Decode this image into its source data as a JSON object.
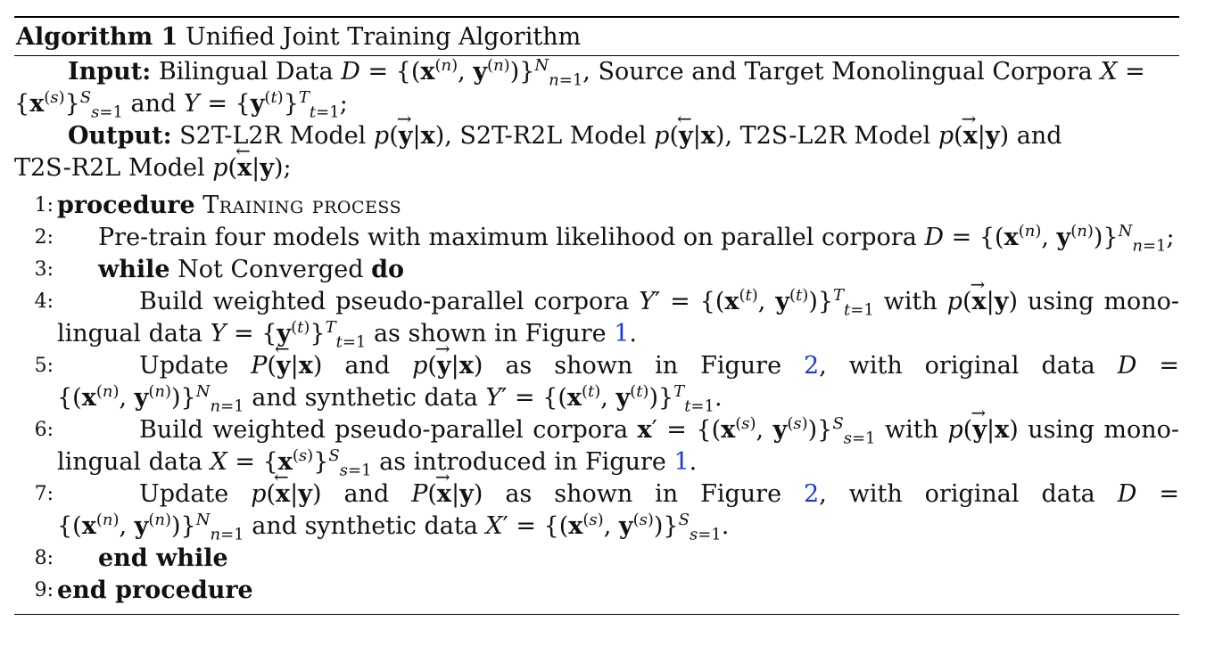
{
  "caption": {
    "label": "Algorithm 1",
    "title": "Unified Joint Training Algorithm"
  },
  "input": {
    "label": "Input:",
    "text_a": "Bilingual Data",
    "text_b": "Source and Target Monolingual Corpora",
    "text_c": "and"
  },
  "output": {
    "label": "Output:",
    "m1": "S2T-L2R Model",
    "m2": "S2T-R2L Model",
    "m3": "T2S-L2R Model",
    "and": "and",
    "m4": "T2S-R2L Model"
  },
  "lines": [
    {
      "num": "1:",
      "kw": "procedure",
      "name": "Training process"
    },
    {
      "num": "2:",
      "text": "Pre-train four models with maximum likelihood on parallel corpora"
    },
    {
      "num": "3:",
      "kw": "while",
      "text": "Not Converged",
      "kw2": "do"
    },
    {
      "num": "4:",
      "a": "Build weighted pseudo-parallel corpora",
      "b": "with",
      "c": "using mono-",
      "d": "lingual data",
      "e": "as shown in Figure",
      "fig": "1"
    },
    {
      "num": "5:",
      "a": "Update",
      "b": "and",
      "c": "as shown in Figure",
      "fig": "2",
      "d": ", with original data",
      "e": "and synthetic data"
    },
    {
      "num": "6:",
      "a": "Build weighted pseudo-parallel corpora",
      "b": "with",
      "c": "using mono-",
      "d": "lingual data",
      "e": "as introduced in Figure",
      "fig": "1"
    },
    {
      "num": "7:",
      "a": "Update",
      "b": "and",
      "c": "as shown in Figure",
      "fig": "2",
      "d": ", with original data",
      "e": "and synthetic data"
    },
    {
      "num": "8:",
      "kw": "end while"
    },
    {
      "num": "9:",
      "kw": "end procedure"
    }
  ]
}
